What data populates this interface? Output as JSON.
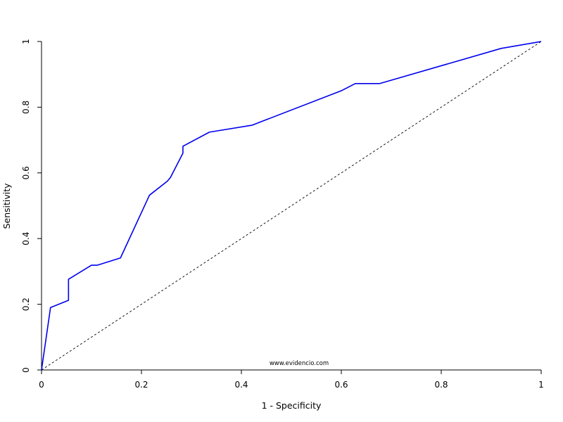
{
  "chart_data": {
    "type": "line",
    "title": "",
    "xlabel": "1 - Specificity",
    "ylabel": "Sensitivity",
    "xlim": [
      0,
      1
    ],
    "ylim": [
      0,
      1
    ],
    "xticks": [
      0,
      0.2,
      0.4,
      0.6,
      0.8,
      1
    ],
    "xtick_labels": [
      "0",
      "0.2",
      "0.4",
      "0.6",
      "0.8",
      "1"
    ],
    "yticks": [
      0,
      0.2,
      0.4,
      0.6,
      0.8,
      1
    ],
    "ytick_labels": [
      "0",
      "0.2",
      "0.4",
      "0.6",
      "0.8",
      "1"
    ],
    "grid": false,
    "watermark": "www.evidencio.com",
    "series": [
      {
        "color": "#0000ee",
        "style": "solid",
        "x": [
          0,
          0.018,
          0.054,
          0.054,
          0.1,
          0.112,
          0.158,
          0.216,
          0.252,
          0.258,
          0.283,
          0.283,
          0.336,
          0.421,
          0.6,
          0.628,
          0.677,
          0.92,
          1
        ],
        "y": [
          0,
          0.19,
          0.212,
          0.276,
          0.319,
          0.319,
          0.341,
          0.532,
          0.575,
          0.586,
          0.66,
          0.681,
          0.724,
          0.745,
          0.85,
          0.872,
          0.872,
          0.979,
          1
        ]
      },
      {
        "color": "#000000",
        "style": "dashed",
        "x": [
          0,
          1
        ],
        "y": [
          0,
          1
        ]
      }
    ]
  }
}
